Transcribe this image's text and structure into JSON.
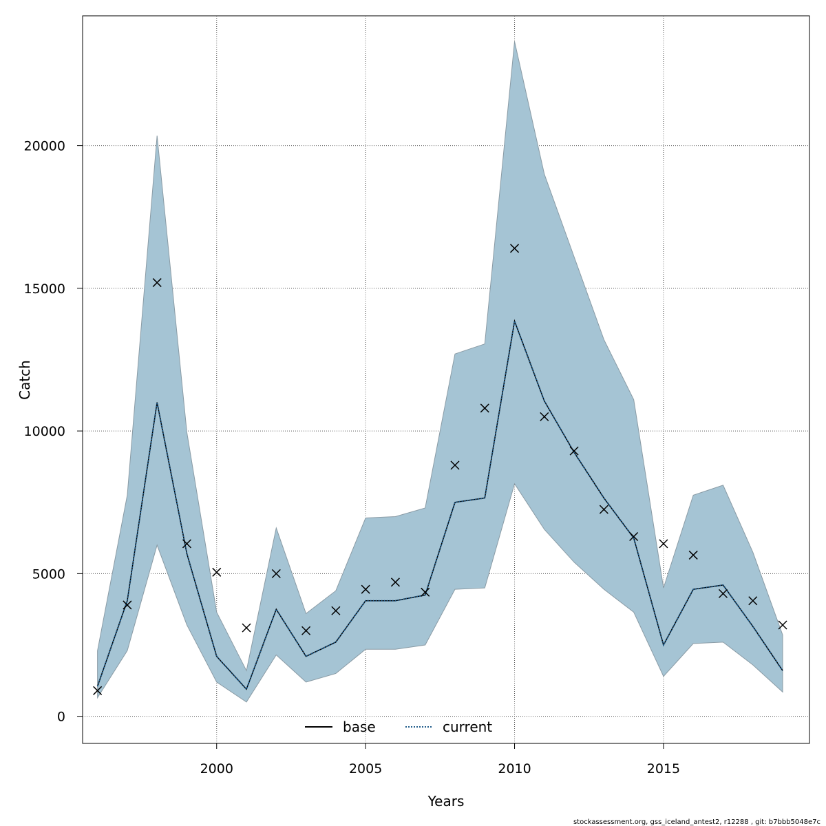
{
  "chart_data": {
    "type": "line",
    "title": "",
    "xlabel": "Years",
    "ylabel": "Catch",
    "xlim": [
      1995.5,
      2019.9
    ],
    "ylim": [
      -950,
      24550
    ],
    "x_ticks": [
      2000,
      2005,
      2010,
      2015
    ],
    "y_ticks": [
      0,
      5000,
      10000,
      15000,
      20000
    ],
    "grid": true,
    "legend_position": "bottom-center",
    "x": [
      1996,
      1997,
      1998,
      1999,
      2000,
      2001,
      2002,
      2003,
      2004,
      2005,
      2006,
      2007,
      2008,
      2009,
      2010,
      2011,
      2012,
      2013,
      2014,
      2015,
      2016,
      2017,
      2018,
      2019
    ],
    "series": [
      {
        "name": "base",
        "style": "solid",
        "color": "#000000",
        "values": [
          1050,
          4050,
          11000,
          5700,
          2100,
          950,
          3750,
          2100,
          2600,
          4050,
          4050,
          4250,
          7500,
          7650,
          13850,
          11050,
          9250,
          7650,
          6250,
          2500,
          4450,
          4600,
          3150,
          1600
        ]
      },
      {
        "name": "current",
        "style": "dotted",
        "color": "#1f5b8a",
        "values": [
          1050,
          4050,
          11000,
          5700,
          2100,
          950,
          3750,
          2100,
          2600,
          4050,
          4050,
          4250,
          7500,
          7650,
          13850,
          11050,
          9250,
          7650,
          6250,
          2500,
          4450,
          4600,
          3150,
          1600
        ]
      }
    ],
    "band": {
      "lower": [
        650,
        2300,
        6000,
        3200,
        1200,
        500,
        2150,
        1200,
        1500,
        2350,
        2350,
        2500,
        4450,
        4500,
        8150,
        6550,
        5400,
        4450,
        3650,
        1400,
        2550,
        2600,
        1800,
        850
      ],
      "upper": [
        2300,
        7750,
        20350,
        9950,
        3650,
        1600,
        6600,
        3600,
        4400,
        6950,
        7000,
        7300,
        12700,
        13050,
        23650,
        19000,
        16100,
        13200,
        11100,
        4500,
        7750,
        8100,
        5750,
        2850
      ],
      "fill_color": "#a5c4d4",
      "stroke_color": "#8a9ba5"
    },
    "observed": {
      "marker": "x",
      "values": [
        900,
        3900,
        15200,
        6050,
        5050,
        3100,
        5000,
        3000,
        3700,
        4450,
        4700,
        4350,
        8800,
        10800,
        16400,
        10500,
        9300,
        7250,
        6300,
        6050,
        5650,
        4300,
        4050,
        3200
      ]
    },
    "footer": "stockassessment.org, gss_iceland_antest2, r12288 , git: b7bbb5048e7c"
  }
}
